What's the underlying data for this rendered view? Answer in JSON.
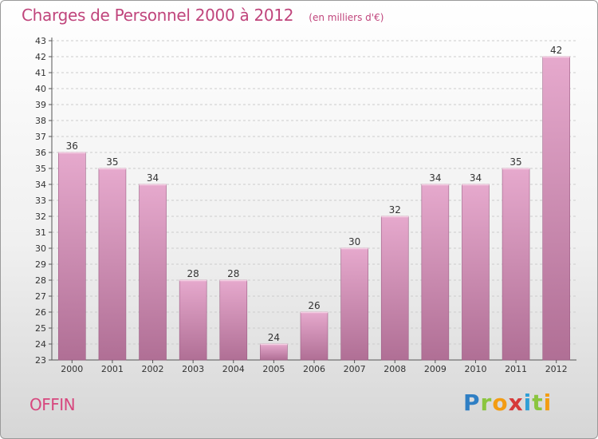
{
  "header": {
    "title": "Charges de Personnel 2000 à 2012",
    "subtitle": "(en milliers d'€)"
  },
  "footer": {
    "commune": "OFFIN",
    "brand_letters": [
      "P",
      "r",
      "o",
      "x",
      "i",
      "t",
      "i"
    ],
    "brand_colors": [
      "#2f7fc4",
      "#8bc53f",
      "#f39c12",
      "#d63a3a",
      "#2f9fd6",
      "#8bc53f",
      "#f39c12"
    ]
  },
  "colors": {
    "bar_light": "#e6a9cd",
    "bar_dark": "#b06f95",
    "bar_edge": "#9d5f85",
    "title": "#c0457c",
    "grid": "#cccccc"
  },
  "chart_data": {
    "type": "bar",
    "title": "Charges de Personnel 2000 à 2012",
    "subtitle": "(en milliers d'€)",
    "categories": [
      "2000",
      "2001",
      "2002",
      "2003",
      "2004",
      "2005",
      "2006",
      "2007",
      "2008",
      "2009",
      "2010",
      "2011",
      "2012"
    ],
    "values": [
      36,
      35,
      34,
      28,
      28,
      24,
      26,
      30,
      32,
      34,
      34,
      35,
      42
    ],
    "ylim": [
      23,
      43
    ],
    "yticks": [
      23,
      24,
      25,
      26,
      27,
      28,
      29,
      30,
      31,
      32,
      33,
      34,
      35,
      36,
      37,
      38,
      39,
      40,
      41,
      42,
      43
    ],
    "grid": true,
    "data_labels": true
  }
}
